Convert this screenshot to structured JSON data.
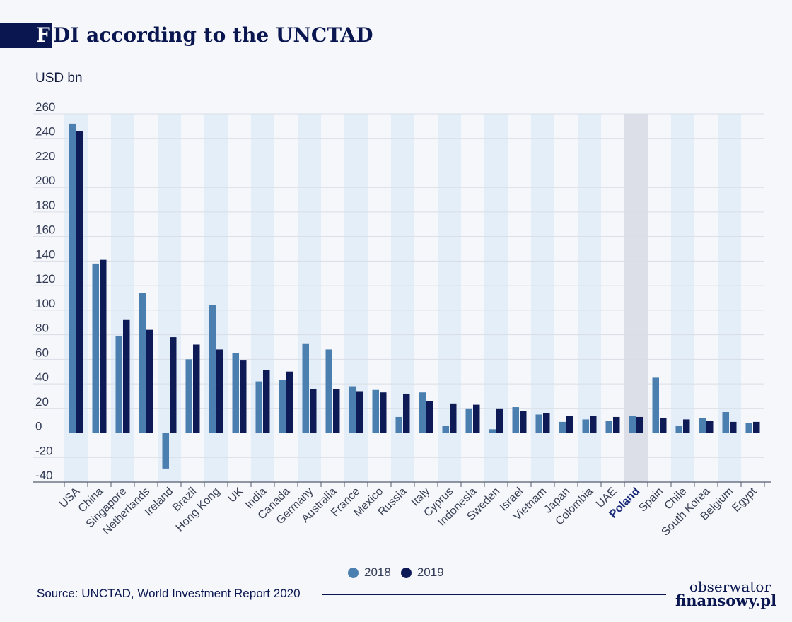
{
  "header": {
    "title_first": "F",
    "title_rest": "DI according to the UNCTAD"
  },
  "unit_label": "USD bn",
  "source": "Source: UNCTAD, World Investment Report 2020",
  "logo": {
    "line1": "obserwator",
    "line2": "finansowy.pl"
  },
  "colors": {
    "s2018": "#4a7fb0",
    "s2019": "#0d1a55",
    "stripe": "#e3eef8",
    "highlight": "#dcdfe8",
    "highlight_text": "#1a2a7a"
  },
  "chart_data": {
    "type": "bar",
    "ylim": [
      -40,
      260
    ],
    "yticks": [
      -40,
      -20,
      0,
      20,
      40,
      60,
      80,
      100,
      120,
      140,
      160,
      180,
      200,
      220,
      240,
      260
    ],
    "highlight_category": "Poland",
    "categories": [
      "USA",
      "China",
      "Singapore",
      "Netherlands",
      "Ireland",
      "Brazil",
      "Hong Kong",
      "UK",
      "India",
      "Canada",
      "Germany",
      "Australia",
      "France",
      "Mexico",
      "Russia",
      "Italy",
      "Cyprus",
      "Indonesia",
      "Sweden",
      "Israel",
      "Vietnam",
      "Japan",
      "Colombia",
      "UAE",
      "Poland",
      "Spain",
      "Chile",
      "South Korea",
      "Belgium",
      "Egypt"
    ],
    "series": [
      {
        "name": "2018",
        "values": [
          252,
          138,
          79,
          114,
          -29,
          60,
          104,
          65,
          42,
          43,
          73,
          68,
          38,
          35,
          13,
          33,
          6,
          20,
          3,
          21,
          15,
          9,
          11,
          10,
          14,
          45,
          6,
          12,
          17,
          8
        ]
      },
      {
        "name": "2019",
        "values": [
          246,
          141,
          92,
          84,
          78,
          72,
          68,
          59,
          51,
          50,
          36,
          36,
          34,
          33,
          32,
          26,
          24,
          23,
          20,
          18,
          16,
          14,
          14,
          13,
          13,
          12,
          11,
          10,
          9,
          9
        ]
      }
    ],
    "legend_position": "bottom",
    "grid": true
  }
}
